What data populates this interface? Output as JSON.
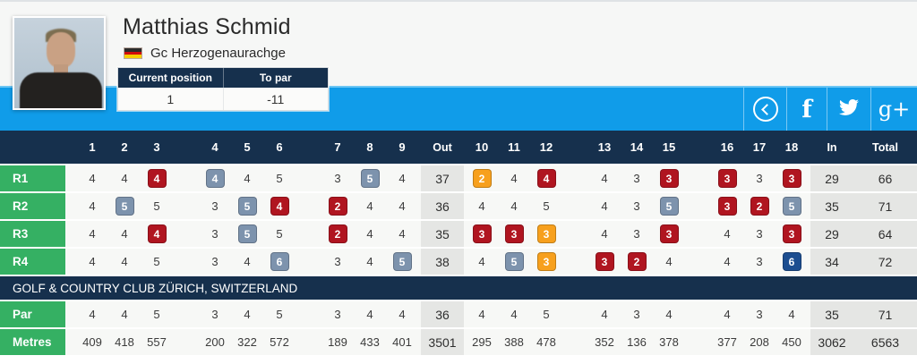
{
  "header": {
    "player_name": "Matthias Schmid",
    "club_name": "Gc Herzogenaurachge",
    "flag": "german-flag",
    "stats": {
      "col1_label": "Current position",
      "col2_label": "To par",
      "col1_value": "1",
      "col2_value": "-11"
    }
  },
  "social": {
    "back_icon": "chevron-left-circle",
    "facebook_glyph": "f",
    "twitter_icon": "twitter-bird",
    "googleplus_glyph": "g+"
  },
  "banner": "GOLF & COUNTRY CLUB ZÜRICH, SWITZERLAND",
  "table": {
    "front_headers": [
      "1",
      "2",
      "3",
      "4",
      "5",
      "6",
      "7",
      "8",
      "9"
    ],
    "back_headers": [
      "10",
      "11",
      "12",
      "13",
      "14",
      "15",
      "16",
      "17",
      "18"
    ],
    "out_label": "Out",
    "in_label": "In",
    "total_label": "Total",
    "rounds": [
      {
        "label": "R1",
        "front": [
          [
            4,
            ""
          ],
          [
            4,
            ""
          ],
          [
            4,
            "birdie"
          ],
          [
            4,
            "bogey"
          ],
          [
            4,
            ""
          ],
          [
            5,
            ""
          ],
          [
            3,
            ""
          ],
          [
            5,
            "bogey"
          ],
          [
            4,
            ""
          ]
        ],
        "out": "37",
        "back": [
          [
            2,
            "eagle"
          ],
          [
            4,
            ""
          ],
          [
            4,
            "birdie"
          ],
          [
            4,
            ""
          ],
          [
            3,
            ""
          ],
          [
            3,
            "birdie"
          ],
          [
            3,
            "birdie"
          ],
          [
            3,
            ""
          ],
          [
            3,
            "birdie"
          ]
        ],
        "in": "29",
        "total": "66"
      },
      {
        "label": "R2",
        "front": [
          [
            4,
            ""
          ],
          [
            5,
            "bogey"
          ],
          [
            5,
            ""
          ],
          [
            3,
            ""
          ],
          [
            5,
            "bogey"
          ],
          [
            4,
            "birdie"
          ],
          [
            2,
            "birdie"
          ],
          [
            4,
            ""
          ],
          [
            4,
            ""
          ]
        ],
        "out": "36",
        "back": [
          [
            4,
            ""
          ],
          [
            4,
            ""
          ],
          [
            5,
            ""
          ],
          [
            4,
            ""
          ],
          [
            3,
            ""
          ],
          [
            5,
            "bogey"
          ],
          [
            3,
            "birdie"
          ],
          [
            2,
            "birdie"
          ],
          [
            5,
            "bogey"
          ]
        ],
        "in": "35",
        "total": "71"
      },
      {
        "label": "R3",
        "front": [
          [
            4,
            ""
          ],
          [
            4,
            ""
          ],
          [
            4,
            "birdie"
          ],
          [
            3,
            ""
          ],
          [
            5,
            "bogey"
          ],
          [
            5,
            ""
          ],
          [
            2,
            "birdie"
          ],
          [
            4,
            ""
          ],
          [
            4,
            ""
          ]
        ],
        "out": "35",
        "back": [
          [
            3,
            "birdie"
          ],
          [
            3,
            "birdie"
          ],
          [
            3,
            "eagle"
          ],
          [
            4,
            ""
          ],
          [
            3,
            ""
          ],
          [
            3,
            "birdie"
          ],
          [
            4,
            ""
          ],
          [
            3,
            ""
          ],
          [
            3,
            "birdie"
          ]
        ],
        "in": "29",
        "total": "64"
      },
      {
        "label": "R4",
        "front": [
          [
            4,
            ""
          ],
          [
            4,
            ""
          ],
          [
            5,
            ""
          ],
          [
            3,
            ""
          ],
          [
            4,
            ""
          ],
          [
            6,
            "bogey"
          ],
          [
            3,
            ""
          ],
          [
            4,
            ""
          ],
          [
            5,
            "bogey"
          ]
        ],
        "out": "38",
        "back": [
          [
            4,
            ""
          ],
          [
            5,
            "bogey"
          ],
          [
            3,
            "eagle"
          ],
          [
            3,
            "birdie"
          ],
          [
            2,
            "birdie"
          ],
          [
            4,
            ""
          ],
          [
            4,
            ""
          ],
          [
            3,
            ""
          ],
          [
            6,
            "double-bogey"
          ]
        ],
        "in": "34",
        "total": "72"
      }
    ],
    "par": {
      "label": "Par",
      "front": [
        [
          4,
          ""
        ],
        [
          4,
          ""
        ],
        [
          5,
          ""
        ],
        [
          3,
          ""
        ],
        [
          4,
          ""
        ],
        [
          5,
          ""
        ],
        [
          3,
          ""
        ],
        [
          4,
          ""
        ],
        [
          4,
          ""
        ]
      ],
      "out": "36",
      "back": [
        [
          4,
          ""
        ],
        [
          4,
          ""
        ],
        [
          5,
          ""
        ],
        [
          4,
          ""
        ],
        [
          3,
          ""
        ],
        [
          4,
          ""
        ],
        [
          4,
          ""
        ],
        [
          3,
          ""
        ],
        [
          4,
          ""
        ]
      ],
      "in": "35",
      "total": "71"
    },
    "metres": {
      "label": "Metres",
      "front": [
        [
          409,
          ""
        ],
        [
          418,
          ""
        ],
        [
          557,
          ""
        ],
        [
          200,
          ""
        ],
        [
          322,
          ""
        ],
        [
          572,
          ""
        ],
        [
          189,
          ""
        ],
        [
          433,
          ""
        ],
        [
          401,
          ""
        ]
      ],
      "out": "3501",
      "back": [
        [
          295,
          ""
        ],
        [
          388,
          ""
        ],
        [
          478,
          ""
        ],
        [
          352,
          ""
        ],
        [
          136,
          ""
        ],
        [
          378,
          ""
        ],
        [
          377,
          ""
        ],
        [
          208,
          ""
        ],
        [
          450,
          ""
        ]
      ],
      "in": "3062",
      "total": "6563"
    }
  },
  "colors": {
    "accent_blue": "#109ce9",
    "navy": "#16304d",
    "green": "#35b063",
    "birdie_red": "#b01520",
    "eagle_orange": "#f7a01d",
    "bogey_gray_blue": "#7d93ad",
    "double_bogey_blue": "#1d4e90"
  }
}
